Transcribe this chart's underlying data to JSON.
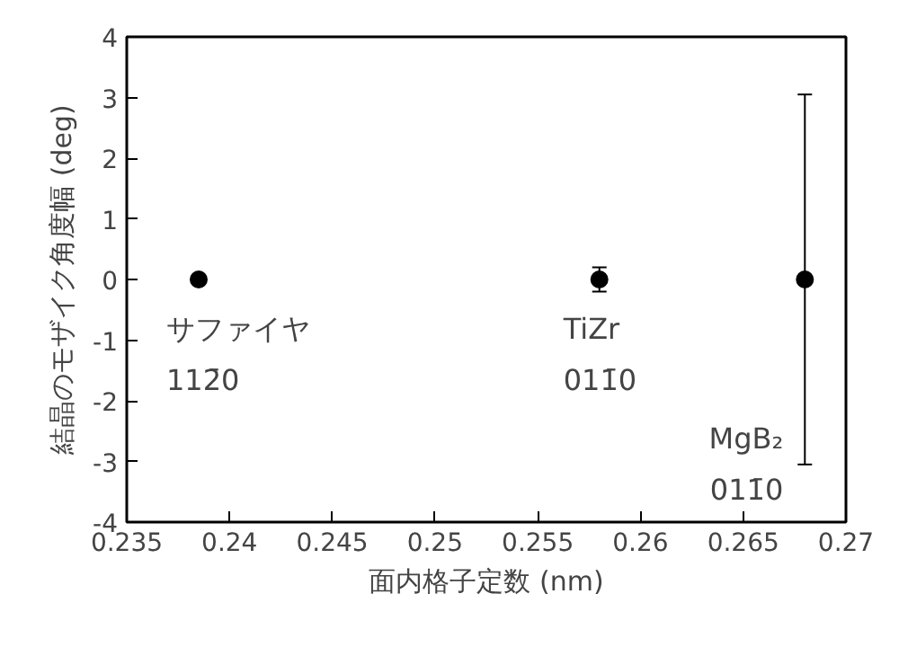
{
  "chart_data": {
    "type": "scatter",
    "xlabel": "面内格子定数 (nm)",
    "ylabel": "結晶のモザイク角度幅 (deg)",
    "x": [
      0.2385,
      0.258,
      0.268
    ],
    "series": [
      {
        "color": "#000000",
        "values": [
          0,
          0,
          0
        ],
        "errors": [
          null,
          0.2,
          3.05
        ]
      }
    ],
    "xlim": [
      0.235,
      0.27
    ],
    "xticks": [
      0.235,
      0.24,
      0.245,
      0.25,
      0.255,
      0.26,
      0.265,
      0.27
    ],
    "ylim": [
      -4,
      4
    ],
    "yticks": [
      -4,
      -3,
      -2,
      -1,
      0,
      1,
      2,
      3,
      4
    ],
    "annotations": [
      {
        "text": "サファイヤ\n112̄0",
        "x": 0.2385,
        "y": 0
      },
      {
        "text": "TiZr\n011̄0",
        "x": 0.258,
        "y": 0
      },
      {
        "text": "MgB₂\n011̄0",
        "x": 0.268,
        "y": -3.05
      }
    ],
    "marker": "circle",
    "grid": false
  }
}
